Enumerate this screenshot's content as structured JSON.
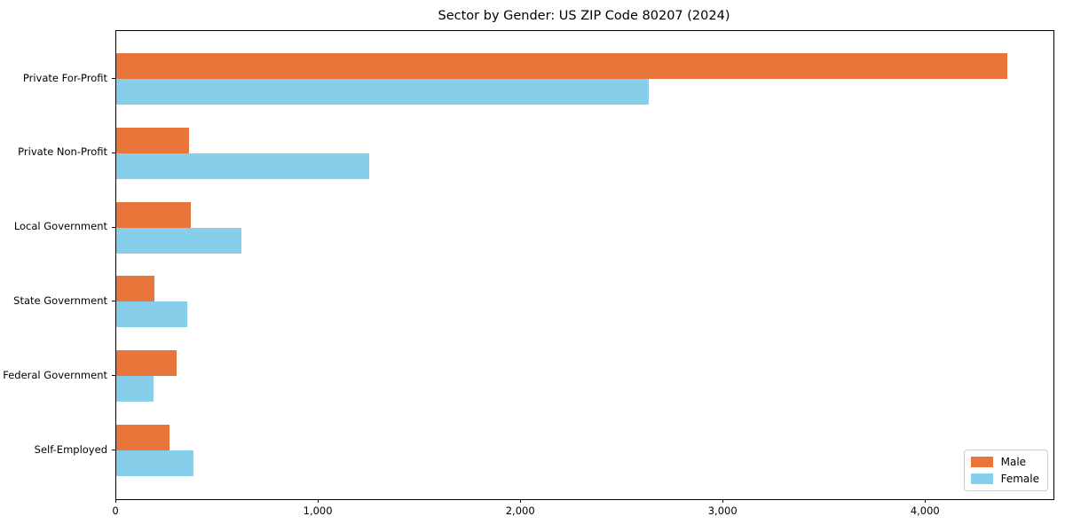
{
  "chart_data": {
    "type": "bar",
    "orientation": "horizontal",
    "title": "Sector by Gender: US ZIP Code 80207 (2024)",
    "categories": [
      "Private For-Profit",
      "Private Non-Profit",
      "Local Government",
      "State Government",
      "Federal Government",
      "Self-Employed"
    ],
    "series": [
      {
        "name": "Male",
        "color": "#e8763b",
        "values": [
          4400,
          360,
          370,
          190,
          300,
          265
        ]
      },
      {
        "name": "Female",
        "color": "#87ceeb",
        "values": [
          2630,
          1250,
          620,
          350,
          185,
          380
        ]
      }
    ],
    "xlabel": "",
    "ylabel": "",
    "xlim": [
      0,
      4630
    ],
    "xticks": [
      0,
      1000,
      2000,
      3000,
      4000
    ],
    "xtick_labels": [
      "0",
      "1,000",
      "2,000",
      "3,000",
      "4,000"
    ],
    "grid": false,
    "legend": {
      "position": "lower-right",
      "items": [
        "Male",
        "Female"
      ]
    },
    "colors": {
      "spine": "#000000",
      "plot_background": "#ffffff",
      "legend_border": "#cccccc"
    }
  }
}
